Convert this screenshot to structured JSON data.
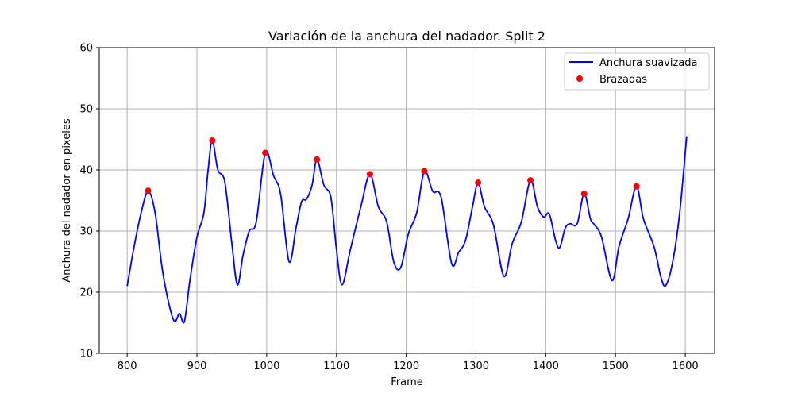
{
  "chart_data": {
    "type": "line",
    "title": "Variación de la anchura del nadador. Split 2",
    "xlabel": "Frame",
    "ylabel": "Anchura del nadador en pixeles",
    "xlim": [
      760,
      1642
    ],
    "ylim": [
      10,
      60
    ],
    "xticks": [
      800,
      900,
      1000,
      1100,
      1200,
      1300,
      1400,
      1500,
      1600
    ],
    "yticks": [
      10,
      20,
      30,
      40,
      50,
      60
    ],
    "grid": true,
    "legend_position": "top-right",
    "colors": {
      "line": "#0000ff",
      "markers": "#ff0000",
      "grid": "#b0b0b0"
    },
    "series": [
      {
        "name": "Anchura suavizada",
        "kind": "line",
        "x": [
          800,
          810,
          820,
          830,
          840,
          850,
          860,
          868,
          875,
          882,
          890,
          900,
          910,
          916,
          922,
          930,
          940,
          950,
          958,
          966,
          975,
          985,
          998,
          1010,
          1020,
          1032,
          1042,
          1050,
          1057,
          1065,
          1072,
          1082,
          1092,
          1100,
          1108,
          1120,
          1135,
          1148,
          1160,
          1172,
          1182,
          1192,
          1203,
          1215,
          1226,
          1238,
          1250,
          1265,
          1275,
          1285,
          1295,
          1303,
          1312,
          1325,
          1340,
          1352,
          1365,
          1378,
          1388,
          1397,
          1405,
          1414,
          1420,
          1428,
          1435,
          1445,
          1455,
          1464,
          1470,
          1480,
          1495,
          1505,
          1518,
          1530,
          1540,
          1555,
          1565,
          1572,
          1582,
          1592,
          1602
        ],
        "y": [
          21,
          27.5,
          33,
          36.5,
          33,
          24,
          18,
          15.2,
          16.5,
          15.2,
          22,
          29,
          33,
          40,
          44.8,
          40,
          38,
          28,
          21.2,
          26,
          30,
          31.5,
          42.8,
          39,
          36,
          25,
          30.5,
          34.8,
          35.2,
          37.5,
          41.7,
          37.5,
          35.5,
          27,
          21.2,
          27,
          34,
          39.3,
          34,
          31.5,
          25,
          24,
          29.5,
          33,
          39.8,
          36.5,
          35.5,
          24.7,
          26.5,
          28.5,
          34,
          37.9,
          34,
          31,
          22.6,
          28,
          31.5,
          38.3,
          34,
          32.3,
          32.8,
          28.5,
          27.3,
          30.5,
          31.2,
          31.2,
          36.1,
          32,
          31,
          29,
          21.9,
          27.5,
          32,
          37.3,
          32,
          27.5,
          22.5,
          21.1,
          25,
          33,
          45.5
        ]
      },
      {
        "name": "Brazadas",
        "kind": "scatter",
        "x": [
          830,
          922,
          998,
          1072,
          1148,
          1226,
          1303,
          1378,
          1455,
          1530
        ],
        "y": [
          36.6,
          44.8,
          42.8,
          41.7,
          39.3,
          39.8,
          37.9,
          38.3,
          36.1,
          37.3
        ]
      }
    ]
  }
}
